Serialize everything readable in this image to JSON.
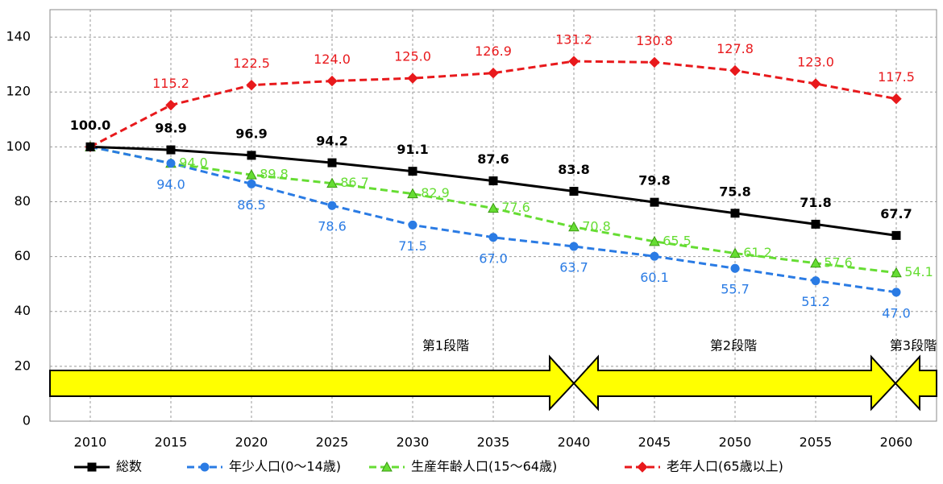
{
  "chart_data": {
    "type": "line",
    "categories": [
      "2010",
      "2015",
      "2020",
      "2025",
      "2030",
      "2035",
      "2040",
      "2045",
      "2050",
      "2055",
      "2060"
    ],
    "series": [
      {
        "name": "総数",
        "color": "#000000",
        "marker": "square",
        "dash": false,
        "label_pos": "above-bold",
        "values": [
          100.0,
          98.9,
          96.9,
          94.2,
          91.1,
          87.6,
          83.8,
          79.8,
          75.8,
          71.8,
          67.7
        ],
        "value_labels": [
          "100.0",
          "98.9",
          "96.9",
          "94.2",
          "91.1",
          "87.6",
          "83.8",
          "79.8",
          "75.8",
          "71.8",
          "67.7"
        ]
      },
      {
        "name": "年少人口(0〜14歳)",
        "color": "#2a7be4",
        "marker": "circle",
        "dash": true,
        "label_pos": "below",
        "values": [
          100,
          94.0,
          86.5,
          78.6,
          71.5,
          67.0,
          63.7,
          60.1,
          55.7,
          51.2,
          47.0
        ],
        "value_labels": [
          null,
          "94.0",
          "86.5",
          "78.6",
          "71.5",
          "67.0",
          "63.7",
          "60.1",
          "55.7",
          "51.2",
          "47.0"
        ]
      },
      {
        "name": "生産年齢人口(15〜64歳)",
        "color": "#66dd33",
        "marker": "triangle",
        "dash": true,
        "label_pos": "right",
        "values": [
          100,
          94.0,
          89.8,
          86.7,
          82.9,
          77.6,
          70.8,
          65.5,
          61.2,
          57.6,
          54.1
        ],
        "value_labels": [
          null,
          "94.0",
          "89.8",
          "86.7",
          "82.9",
          "77.6",
          "70.8",
          "65.5",
          "61.2",
          "57.6",
          "54.1"
        ]
      },
      {
        "name": "老年人口(65歳以上)",
        "color": "#e8191c",
        "marker": "diamond",
        "dash": true,
        "label_pos": "above",
        "values": [
          100,
          115.2,
          122.5,
          124.0,
          125.0,
          126.9,
          131.2,
          130.8,
          127.8,
          123.0,
          117.5
        ],
        "value_labels": [
          null,
          "115.2",
          "122.5",
          "124.0",
          "125.0",
          "126.9",
          "131.2",
          "130.8",
          "127.8",
          "123.0",
          "117.5"
        ]
      }
    ],
    "ylim": [
      0,
      150
    ],
    "yticks": [
      0,
      20,
      40,
      60,
      80,
      100,
      120,
      140
    ],
    "grid": true,
    "legend": "bottom",
    "annotations": [
      "第1段階",
      "第2段階",
      "第3段階"
    ]
  }
}
